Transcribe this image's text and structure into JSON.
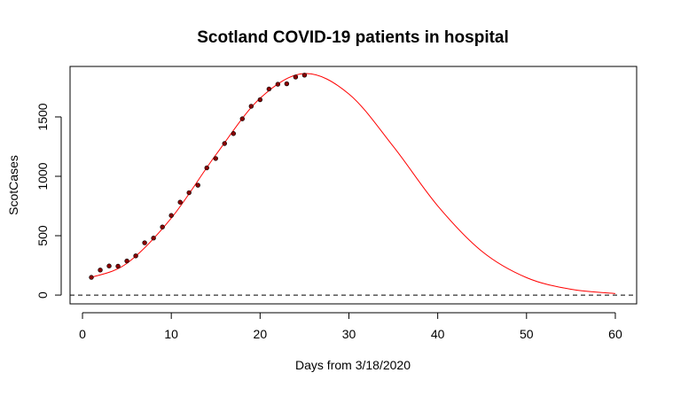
{
  "chart_data": {
    "type": "scatter",
    "title": "Scotland COVID-19 patients in hospital",
    "xlabel": "Days from 3/18/2020",
    "ylabel": "ScotCases",
    "xlim": [
      -1.4,
      62.4
    ],
    "ylim": [
      -74,
      1925
    ],
    "xticks": [
      0,
      10,
      20,
      30,
      40,
      50,
      60
    ],
    "yticks": [
      0,
      500,
      1000,
      1500
    ],
    "grid": false,
    "legend": "none",
    "series": [
      {
        "kind": "points",
        "color": "#8b0000",
        "x": [
          1,
          2,
          3,
          4,
          5,
          6,
          7,
          8,
          9,
          10,
          11,
          12,
          13,
          14,
          15,
          16,
          17,
          18,
          19,
          20,
          21,
          22,
          23,
          24,
          25
        ],
        "y": [
          149,
          211,
          245,
          243,
          287,
          330,
          440,
          480,
          573,
          670,
          782,
          862,
          925,
          1071,
          1150,
          1276,
          1360,
          1484,
          1590,
          1645,
          1735,
          1775,
          1779,
          1836,
          1852
        ]
      },
      {
        "kind": "fitted-curve",
        "color": "#ff0000",
        "x": [
          1,
          5,
          10,
          15,
          20,
          25,
          30,
          35,
          40,
          45,
          50,
          55,
          60
        ],
        "y": [
          149,
          267,
          648,
          1179,
          1657,
          1865,
          1693,
          1251,
          751,
          367,
          147,
          49,
          13
        ]
      },
      {
        "kind": "reference-line",
        "style": "dashed",
        "color": "#000000",
        "y": 0
      }
    ]
  }
}
